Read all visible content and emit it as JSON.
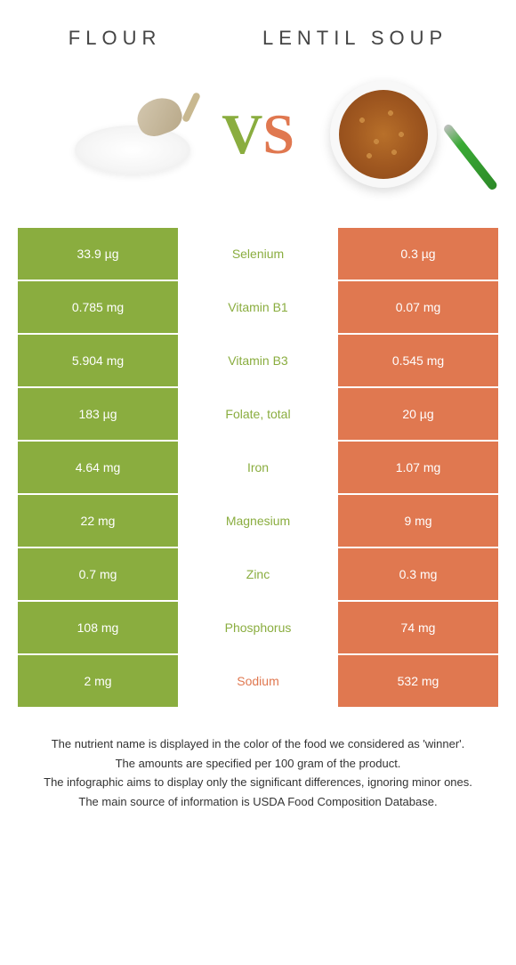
{
  "header": {
    "left_title": "FLOUR",
    "right_title": "LENTIL SOUP"
  },
  "vs": {
    "v": "V",
    "s": "S"
  },
  "colors": {
    "green": "#8aad3f",
    "orange": "#e07850",
    "mid_bg": "#ffffff",
    "text_dark": "#333333"
  },
  "rows": [
    {
      "left": "33.9 µg",
      "name": "Selenium",
      "right": "0.3 µg",
      "winner": "left"
    },
    {
      "left": "0.785 mg",
      "name": "Vitamin B1",
      "right": "0.07 mg",
      "winner": "left"
    },
    {
      "left": "5.904 mg",
      "name": "Vitamin B3",
      "right": "0.545 mg",
      "winner": "left"
    },
    {
      "left": "183 µg",
      "name": "Folate, total",
      "right": "20 µg",
      "winner": "left"
    },
    {
      "left": "4.64 mg",
      "name": "Iron",
      "right": "1.07 mg",
      "winner": "left"
    },
    {
      "left": "22 mg",
      "name": "Magnesium",
      "right": "9 mg",
      "winner": "left"
    },
    {
      "left": "0.7 mg",
      "name": "Zinc",
      "right": "0.3 mg",
      "winner": "left"
    },
    {
      "left": "108 mg",
      "name": "Phosphorus",
      "right": "74 mg",
      "winner": "left"
    },
    {
      "left": "2 mg",
      "name": "Sodium",
      "right": "532 mg",
      "winner": "right"
    }
  ],
  "footer": {
    "line1": "The nutrient name is displayed in the color of the food we considered as 'winner'.",
    "line2": "The amounts are specified per 100 gram of the product.",
    "line3": "The infographic aims to display only the significant differences, ignoring minor ones.",
    "line4": "The main source of information is USDA Food Composition Database."
  }
}
